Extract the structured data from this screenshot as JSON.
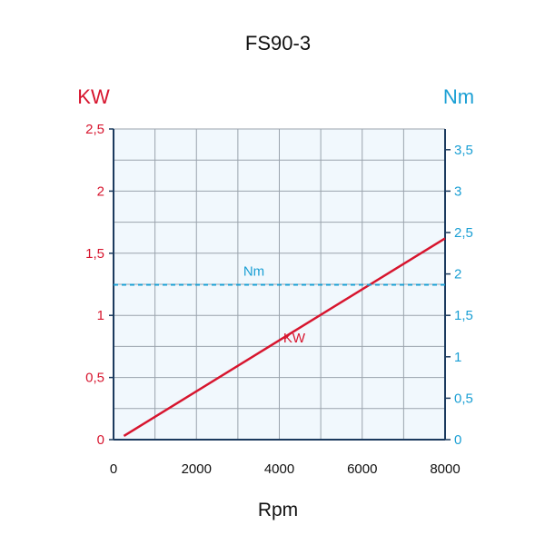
{
  "chart_data": {
    "type": "line",
    "title": "FS90-3",
    "xlabel": "Rpm",
    "ylabel_left": "KW",
    "ylabel_right": "Nm",
    "xlim": [
      0,
      8000
    ],
    "x_ticks": [
      0,
      2000,
      4000,
      6000,
      8000
    ],
    "x_tick_labels": [
      "0",
      "2000",
      "4000",
      "6000",
      "8000"
    ],
    "ylim_left": [
      0,
      2.5
    ],
    "y_left_ticks": [
      0,
      0.5,
      1,
      1.5,
      2,
      2.5
    ],
    "y_left_tick_labels": [
      "0",
      "0,5",
      "1",
      "1,5",
      "2",
      "2,5"
    ],
    "ylim_right": [
      0,
      3.75
    ],
    "y_right_ticks": [
      0,
      0.5,
      1,
      1.5,
      2,
      2.5,
      3,
      3.5
    ],
    "y_right_tick_labels": [
      "0",
      "0,5",
      "1",
      "1,5",
      "2",
      "2,5",
      "3",
      "3,5"
    ],
    "grid": true,
    "series": [
      {
        "name": "KW",
        "axis": "left",
        "style": "solid",
        "color": "#d7152e",
        "x": [
          250,
          8000
        ],
        "y": [
          0.03,
          1.62
        ]
      },
      {
        "name": "Nm",
        "axis": "right",
        "style": "dashed",
        "color": "#1a9fd4",
        "x": [
          0,
          8000
        ],
        "y": [
          1.87,
          1.87
        ]
      }
    ],
    "colors": {
      "left_axis": "#d7152e",
      "right_axis": "#1a9fd4",
      "plot_bg": "#f1f8fd",
      "grid": "#9aa3ad",
      "frame": "#1b3a5e"
    }
  }
}
